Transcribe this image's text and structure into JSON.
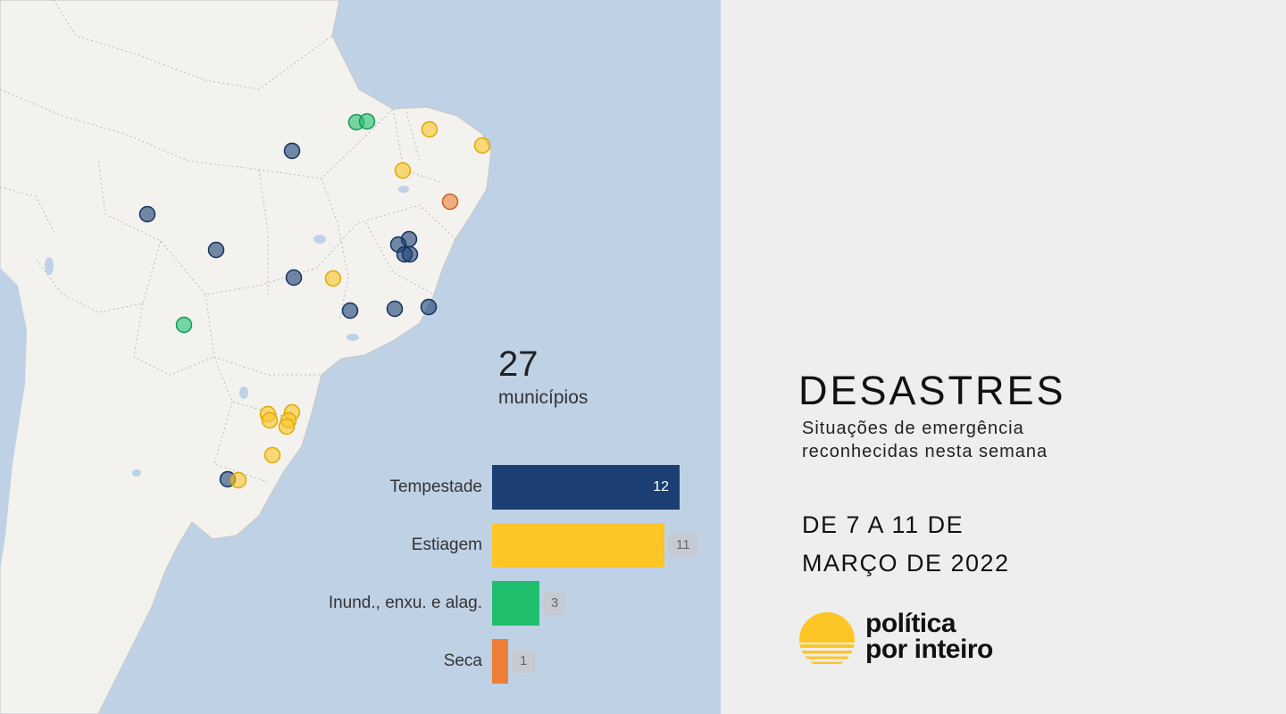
{
  "colors": {
    "tempestade": "#1b3f73",
    "estiagem": "#fdc526",
    "inundacao": "#1fbf6e",
    "seca": "#ee7e36",
    "ocean": "#bfd1e5",
    "land": "#f3f2ef",
    "panel_bg": "#eeeeee"
  },
  "map": {
    "markers": [
      {
        "category": "inundacao"
      },
      {
        "category": "inundacao"
      },
      {
        "category": "estiagem"
      },
      {
        "category": "estiagem"
      },
      {
        "category": "tempestade"
      },
      {
        "category": "estiagem"
      },
      {
        "category": "seca"
      },
      {
        "category": "tempestade"
      },
      {
        "category": "tempestade"
      },
      {
        "category": "tempestade"
      },
      {
        "category": "tempestade"
      },
      {
        "category": "tempestade"
      },
      {
        "category": "tempestade"
      },
      {
        "category": "tempestade"
      },
      {
        "category": "estiagem"
      },
      {
        "category": "tempestade"
      },
      {
        "category": "tempestade"
      },
      {
        "category": "tempestade"
      },
      {
        "category": "inundacao"
      },
      {
        "category": "estiagem"
      },
      {
        "category": "estiagem"
      },
      {
        "category": "estiagem"
      },
      {
        "category": "estiagem"
      },
      {
        "category": "estiagem"
      },
      {
        "category": "estiagem"
      },
      {
        "category": "tempestade"
      },
      {
        "category": "estiagem"
      }
    ]
  },
  "summary": {
    "total": "27",
    "unit": "municípios"
  },
  "chart_data": {
    "type": "bar",
    "orientation": "horizontal",
    "categories": [
      "Tempestade",
      "Estiagem",
      "Inund., enxu. e alag.",
      "Seca"
    ],
    "values": [
      12,
      11,
      3,
      1
    ],
    "value_labels": [
      "12",
      "11",
      "3",
      "1"
    ],
    "colors": [
      "#1b3f73",
      "#fdc526",
      "#1fbf6e",
      "#ee7e36"
    ],
    "xlim": [
      0,
      12
    ],
    "grid": false
  },
  "info": {
    "headline": "DESASTRES",
    "subtitle_line1": "Situações de emergência",
    "subtitle_line2": "reconhecidas nesta semana",
    "date_line1": "DE 7 A 11 DE",
    "date_line2": "MARÇO DE 2022"
  },
  "logo": {
    "line1": "política",
    "line2": "por inteiro",
    "icon": "sun-logo-icon"
  }
}
